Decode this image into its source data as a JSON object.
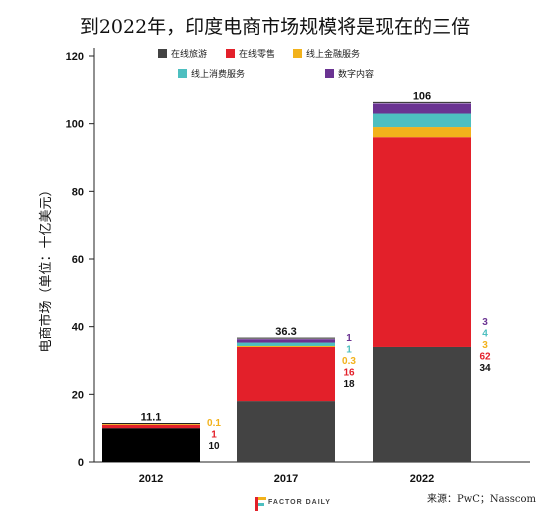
{
  "title": "到2022年，印度电商市场规模将是现在的三倍",
  "source": "来源：PwC；Nasscom",
  "logo": "FACTOR DAILY",
  "colors": {
    "travel": "#434343",
    "retail": "#e3202a",
    "financial": "#f2b21b",
    "consumer": "#4dbfc0",
    "digital": "#6a3392",
    "black_bar": "#000000"
  },
  "chart_data": {
    "type": "bar",
    "stacked": true,
    "ylabel": "电商市场（单位：十亿美元）",
    "ylim": [
      0,
      120
    ],
    "yticks": [
      0,
      20,
      40,
      60,
      80,
      100,
      120
    ],
    "categories": [
      "2012",
      "2017",
      "2022"
    ],
    "totals": [
      "11.1",
      "36.3",
      "106"
    ],
    "legend_position": "top",
    "series": [
      {
        "name": "在线旅游",
        "key": "travel",
        "values": [
          10,
          18,
          34
        ]
      },
      {
        "name": "在线零售",
        "key": "retail",
        "values": [
          1,
          16,
          62
        ]
      },
      {
        "name": "线上金融服务",
        "key": "financial",
        "values": [
          0.1,
          0.3,
          3
        ]
      },
      {
        "name": "线上消费服务",
        "key": "consumer",
        "values": [
          0,
          1,
          4
        ]
      },
      {
        "name": "数字内容",
        "key": "digital",
        "values": [
          0,
          1,
          3
        ]
      }
    ],
    "value_labels": [
      [
        "10",
        "1",
        "0.1"
      ],
      [
        "18",
        "16",
        "0.3",
        "1",
        "1"
      ],
      [
        "34",
        "62",
        "3",
        "4",
        "3"
      ]
    ],
    "grid": false
  }
}
